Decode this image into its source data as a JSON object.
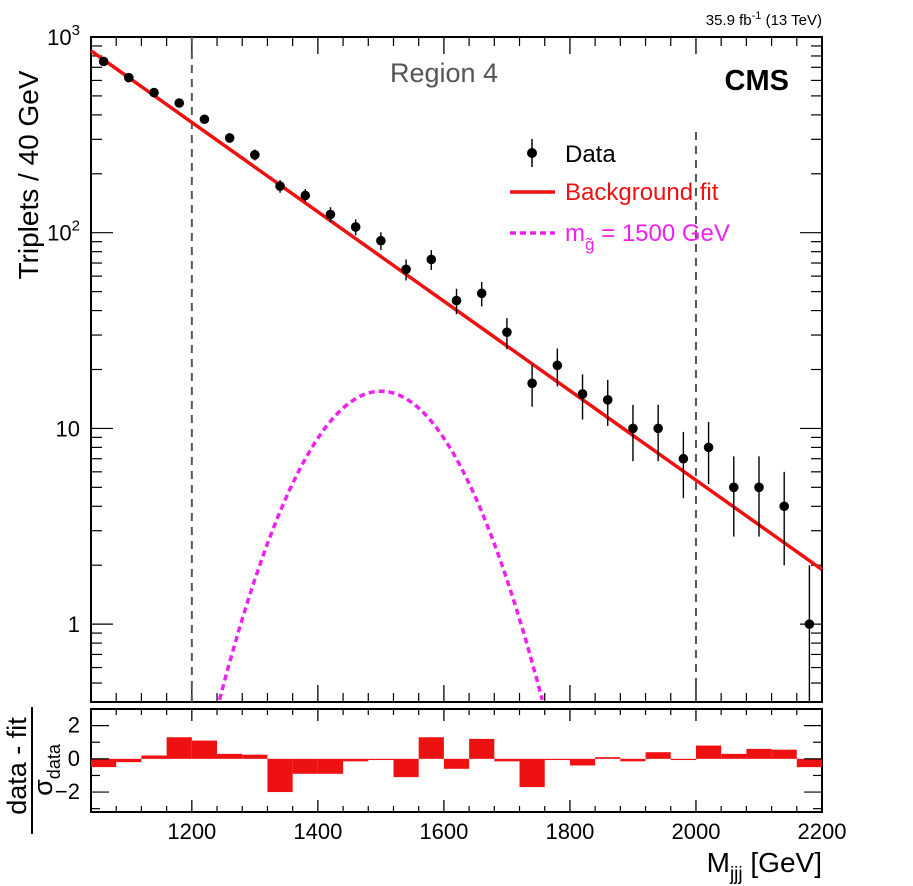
{
  "chart_data": [
    {
      "type": "scatter",
      "title": "",
      "lumi_label": {
        "value": "35.9 fb",
        "sup": "-1",
        "energy": "(13 TeV)"
      },
      "region_label": "Region 4",
      "experiment_label": "CMS",
      "ylabel": "Triplets / 40 GeV",
      "yscale": "log",
      "ylim": [
        0.4,
        1000
      ],
      "xlim": [
        1040,
        2200
      ],
      "y_tick_labels": [
        {
          "base": "10",
          "sup": "3",
          "value": 1000
        },
        {
          "base": "10",
          "sup": "2",
          "value": 100
        },
        {
          "base": "10",
          "sup": "",
          "value": 10
        },
        {
          "base": "1",
          "sup": "",
          "value": 1
        }
      ],
      "region_boundaries": [
        1200,
        2000
      ],
      "legend": {
        "data": "Data",
        "fit": "Background fit",
        "signal_prefix": "m",
        "signal_sub": "g̃",
        "signal_suffix": " = 1500 GeV"
      },
      "colors": {
        "data": "#000000",
        "fit": "#ee1111",
        "signal": "#ee22ee",
        "boundary": "#555555"
      },
      "series": [
        {
          "name": "Data",
          "x": [
            1060,
            1100,
            1140,
            1180,
            1220,
            1260,
            1300,
            1340,
            1380,
            1420,
            1460,
            1500,
            1540,
            1580,
            1620,
            1660,
            1700,
            1740,
            1780,
            1820,
            1860,
            1900,
            1940,
            1980,
            2020,
            2060,
            2100,
            2140,
            2180
          ],
          "y": [
            750,
            620,
            520,
            460,
            380,
            305,
            250,
            173,
            155,
            124,
            107,
            91,
            65,
            73,
            45,
            49,
            31,
            17,
            21,
            15,
            14,
            10,
            10,
            7,
            8,
            5,
            5,
            4,
            1
          ],
          "yerr": [
            27,
            25,
            23,
            21,
            19,
            17,
            16,
            13,
            12,
            11,
            10,
            9.5,
            8,
            8.5,
            6.7,
            7,
            5.6,
            4.1,
            4.6,
            3.9,
            3.7,
            3.2,
            3.2,
            2.6,
            2.8,
            2.2,
            2.2,
            2.0,
            1.0
          ]
        },
        {
          "name": "Background fit",
          "x": [
            1040,
            2200
          ],
          "y": [
            850,
            1.9
          ]
        },
        {
          "name": "m_gluino = 1500 GeV",
          "mean": 1500,
          "peak": 15.5,
          "sigma": 95
        }
      ]
    },
    {
      "type": "bar",
      "ylabel_top": "data - fit",
      "ylabel_bottom": "σ",
      "ylabel_bottom_sub": "data",
      "xlabel": "M",
      "xlabel_sub": "jjj",
      "xlabel_unit": " [GeV]",
      "ylim": [
        -3.2,
        3
      ],
      "x_tick_labels": [
        "1200",
        "1400",
        "1600",
        "1800",
        "2000",
        "2200"
      ],
      "x_tick_values": [
        1200,
        1400,
        1600,
        1800,
        2000,
        2200
      ],
      "y_tick_labels": [
        "2",
        "0",
        "−2"
      ],
      "y_tick_values": [
        2,
        0,
        -2
      ],
      "bin_width": 40,
      "x": [
        1060,
        1100,
        1140,
        1180,
        1220,
        1260,
        1300,
        1340,
        1380,
        1420,
        1460,
        1500,
        1540,
        1580,
        1620,
        1660,
        1700,
        1740,
        1780,
        1820,
        1860,
        1900,
        1940,
        1980,
        2020,
        2060,
        2100,
        2140,
        2180
      ],
      "values": [
        -0.5,
        -0.2,
        0.2,
        1.3,
        1.1,
        0.3,
        0.25,
        -2.0,
        -0.9,
        -0.9,
        -0.15,
        0.0,
        -1.1,
        1.3,
        -0.6,
        1.2,
        -0.15,
        -1.7,
        0.0,
        -0.4,
        0.1,
        -0.15,
        0.4,
        0.0,
        0.8,
        0.3,
        0.6,
        0.55,
        -0.5
      ]
    }
  ]
}
